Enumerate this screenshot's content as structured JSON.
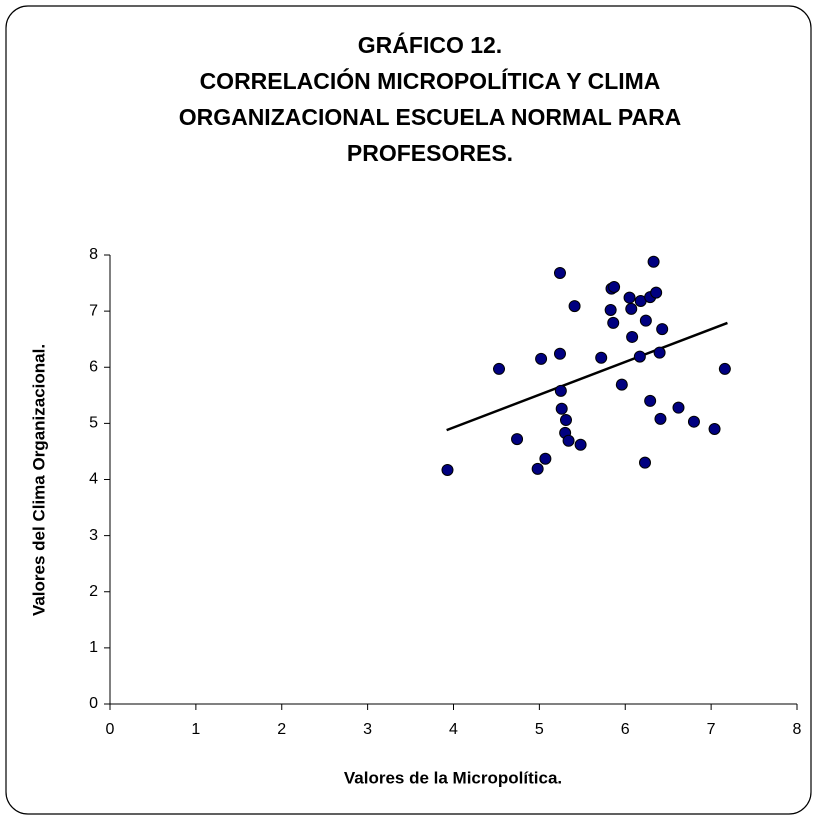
{
  "chart_data": {
    "type": "scatter",
    "title": [
      "GRÁFICO 12.",
      "CORRELACIÓN MICROPOLÍTICA Y CLIMA",
      "ORGANIZACIONAL ESCUELA NORMAL PARA",
      "PROFESORES."
    ],
    "x_label": "Valores de la Micropolítica.",
    "y_label": "Valores del Clima Organizacional.",
    "xlim": [
      0,
      8
    ],
    "xticks": [
      0,
      1,
      2,
      3,
      4,
      5,
      6,
      7,
      8
    ],
    "ylim": [
      0,
      8
    ],
    "yticks": [
      0,
      1,
      2,
      3,
      4,
      5,
      6,
      7,
      8
    ],
    "color": "#000080",
    "x": [
      3.93,
      4.53,
      5.02,
      4.74,
      4.98,
      5.07,
      5.25,
      5.26,
      5.31,
      5.3,
      5.34,
      5.48,
      5.41,
      5.24,
      5.24,
      5.72,
      5.84,
      5.87,
      5.83,
      5.86,
      5.96,
      6.05,
      6.07,
      6.08,
      6.17,
      6.18,
      6.24,
      6.23,
      6.29,
      6.33,
      6.36,
      6.4,
      6.43,
      6.29,
      6.41,
      6.62,
      6.8,
      7.04,
      7.16
    ],
    "values": [
      4.17,
      5.97,
      6.15,
      4.72,
      4.19,
      4.37,
      5.58,
      5.26,
      5.06,
      4.83,
      4.69,
      4.62,
      7.09,
      7.68,
      6.24,
      6.17,
      7.4,
      7.43,
      7.02,
      6.79,
      5.69,
      7.24,
      7.04,
      6.54,
      6.19,
      7.18,
      6.83,
      4.3,
      7.25,
      7.88,
      7.33,
      6.26,
      6.68,
      5.4,
      5.08,
      5.28,
      5.03,
      4.9,
      5.97
    ],
    "trendline": {
      "x": [
        3.92,
        7.19
      ],
      "values": [
        4.88,
        6.79
      ]
    }
  }
}
